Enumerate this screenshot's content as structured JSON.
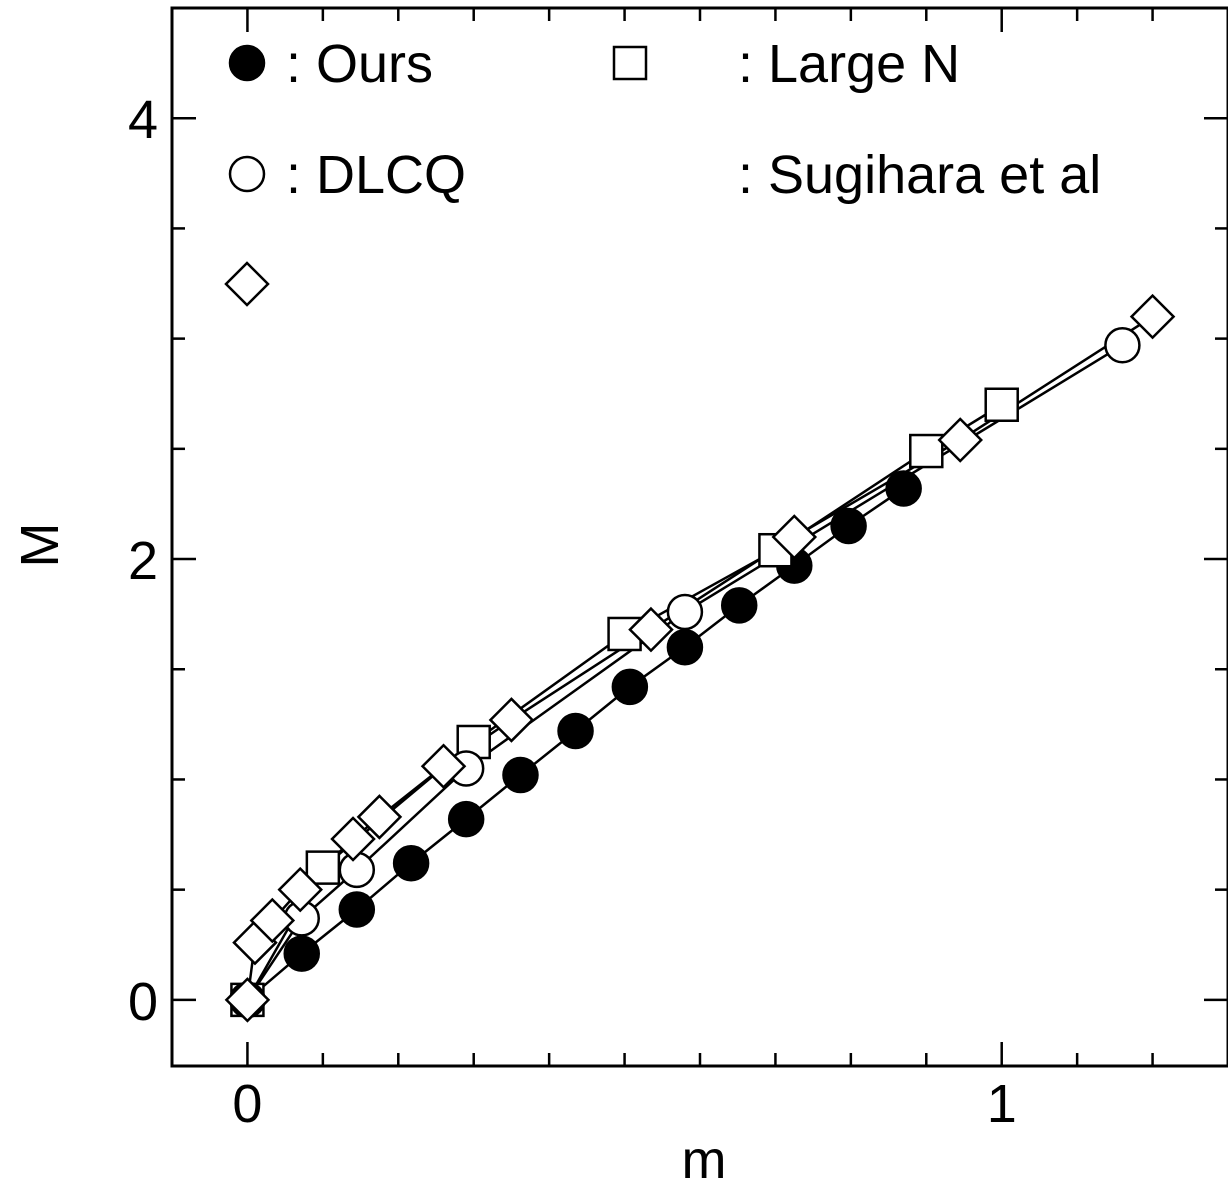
{
  "chart_data": {
    "type": "line",
    "title": "",
    "xlabel": "m",
    "ylabel": "M",
    "xlim": [
      -0.1,
      1.3
    ],
    "ylim": [
      -0.3,
      4.5
    ],
    "x_major_ticks": [
      0,
      1
    ],
    "x_minor_step": 0.1,
    "y_major_ticks": [
      0,
      2,
      4
    ],
    "y_minor_step": 0.5,
    "grid": false,
    "legend": {
      "placement": "top-left",
      "entries": [
        {
          "marker": "filled-circle",
          "label": ": Ours"
        },
        {
          "marker": "open-square",
          "label": ": Large N"
        },
        {
          "marker": "open-circle",
          "label": ": DLCQ"
        },
        {
          "marker": "open-diamond",
          "label": ": Sugihara et al"
        }
      ]
    },
    "series": [
      {
        "name": "Ours",
        "marker": "filled-circle",
        "color": "#000000",
        "x": [
          0,
          0.072,
          0.145,
          0.217,
          0.29,
          0.362,
          0.435,
          0.507,
          0.58,
          0.652,
          0.725,
          0.797,
          0.87
        ],
        "y": [
          0,
          0.21,
          0.41,
          0.62,
          0.82,
          1.02,
          1.22,
          1.42,
          1.6,
          1.79,
          1.97,
          2.15,
          2.32
        ]
      },
      {
        "name": "Large N",
        "marker": "open-square",
        "color": "#000000",
        "x": [
          0,
          0.1,
          0.3,
          0.5,
          0.7,
          0.9,
          1.0
        ],
        "y": [
          0,
          0.6,
          1.17,
          1.66,
          2.04,
          2.49,
          2.7
        ]
      },
      {
        "name": "DLCQ",
        "marker": "open-circle",
        "color": "#000000",
        "x": [
          0,
          0.072,
          0.145,
          0.29,
          0.58,
          1.16
        ],
        "y": [
          0,
          0.37,
          0.59,
          1.05,
          1.76,
          2.97
        ]
      },
      {
        "name": "Sugihara et al",
        "marker": "open-diamond",
        "color": "#000000",
        "x": [
          0,
          0.01,
          0.033,
          0.07,
          0.14,
          0.175,
          0.26,
          0.35,
          0.535,
          0.725,
          0.945,
          1.2
        ],
        "y": [
          0,
          0.26,
          0.36,
          0.5,
          0.73,
          0.83,
          1.06,
          1.27,
          1.68,
          2.1,
          2.54,
          3.1
        ]
      }
    ]
  }
}
